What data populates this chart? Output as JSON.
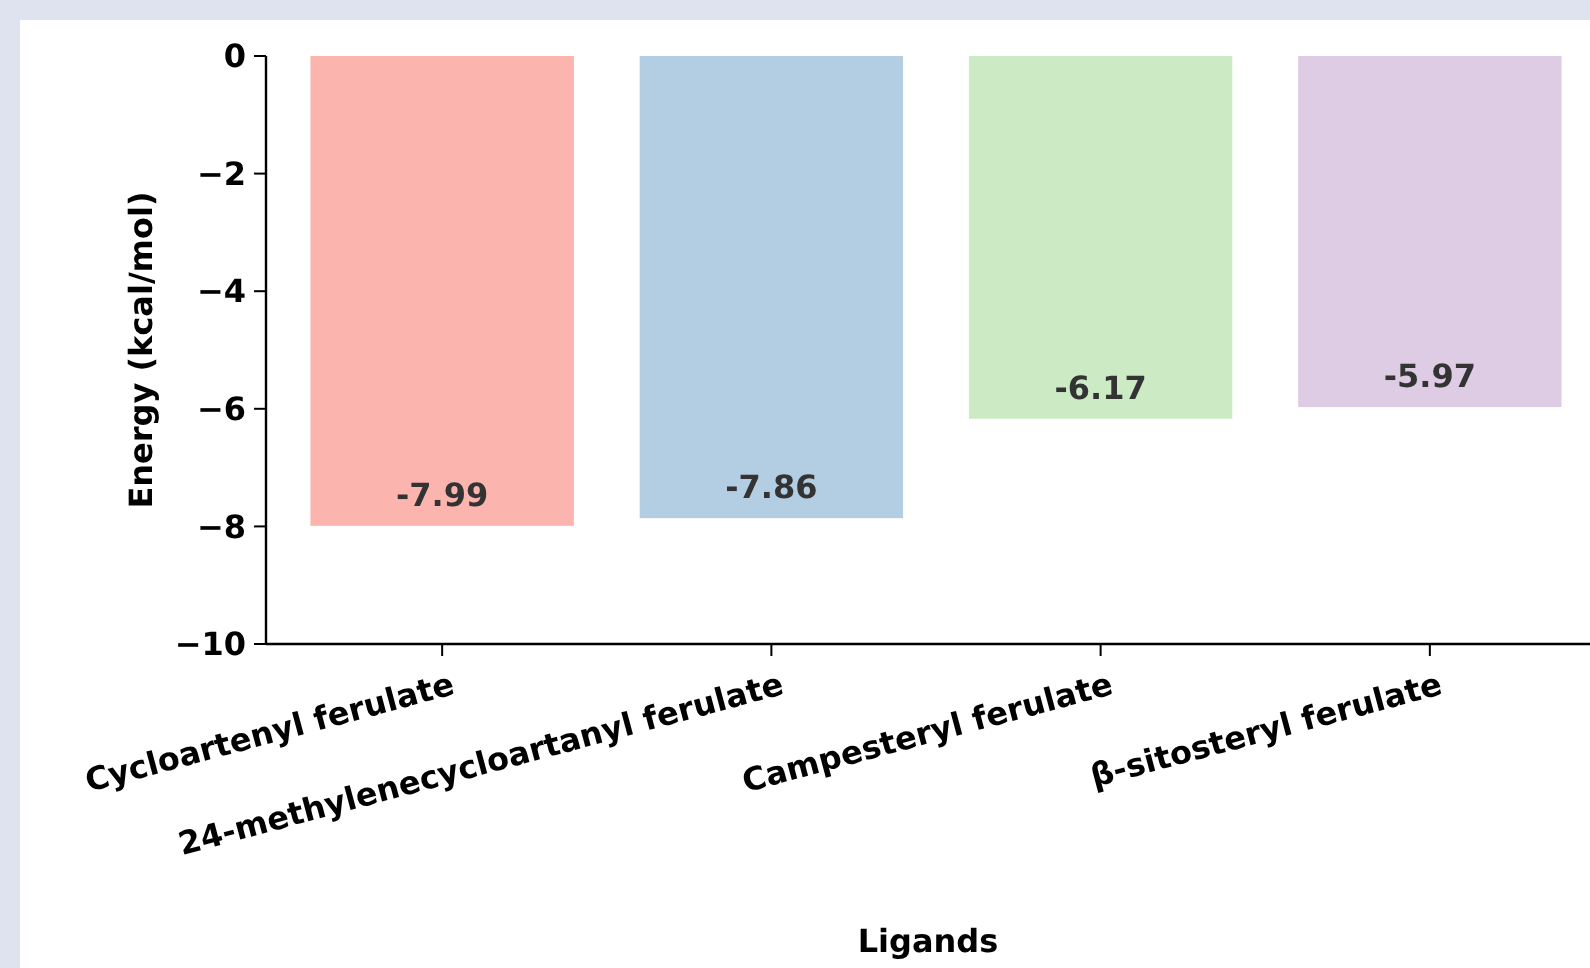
{
  "chart_data": {
    "type": "bar",
    "xlabel": "Ligands",
    "ylabel": "Energy (kcal/mol)",
    "categories": [
      "Cycloartenyl ferulate",
      "24-methylenecycloartanyl ferulate",
      "Campesteryl ferulate",
      "β-sitosteryl ferulate"
    ],
    "values": [
      -7.99,
      -7.86,
      -6.17,
      -5.97
    ],
    "colors": [
      "#fbb4ae",
      "#b3cde3",
      "#ccebc5",
      "#decbe4"
    ],
    "ylim": [
      -10,
      0
    ],
    "yticks": [
      {
        "value": -10,
        "label": "−10"
      },
      {
        "value": -8,
        "label": "−8"
      },
      {
        "value": -6,
        "label": "−6"
      },
      {
        "value": -4,
        "label": "−4"
      },
      {
        "value": -2,
        "label": "−2"
      },
      0
    ],
    "data_labels": true,
    "grid": false
  }
}
